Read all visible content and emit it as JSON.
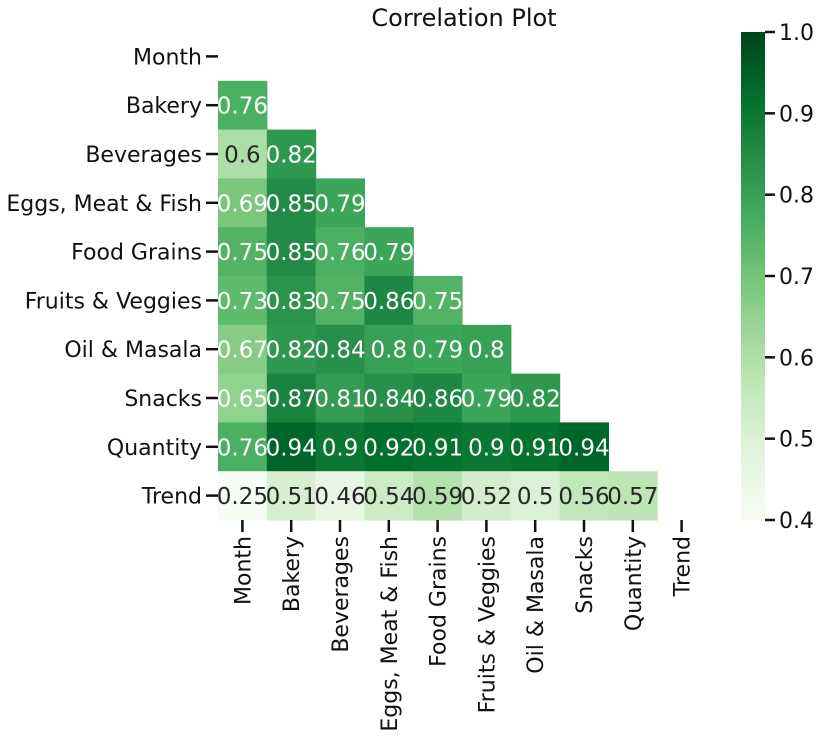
{
  "chart_data": {
    "type": "heatmap",
    "title": "Correlation Plot",
    "xlabel": "",
    "ylabel": "",
    "rows": [
      "Month",
      "Bakery",
      "Beverages",
      "Eggs, Meat & Fish",
      "Food Grains",
      "Fruits & Veggies",
      "Oil & Masala",
      "Snacks",
      "Quantity",
      "Trend"
    ],
    "columns": [
      "Month",
      "Bakery",
      "Beverages",
      "Eggs, Meat & Fish",
      "Food Grains",
      "Fruits & Veggies",
      "Oil & Masala",
      "Snacks",
      "Quantity",
      "Trend"
    ],
    "mask": "upper-triangle-including-diagonal",
    "values": [
      [
        null,
        null,
        null,
        null,
        null,
        null,
        null,
        null,
        null,
        null
      ],
      [
        0.76,
        null,
        null,
        null,
        null,
        null,
        null,
        null,
        null,
        null
      ],
      [
        0.6,
        0.82,
        null,
        null,
        null,
        null,
        null,
        null,
        null,
        null
      ],
      [
        0.69,
        0.85,
        0.79,
        null,
        null,
        null,
        null,
        null,
        null,
        null
      ],
      [
        0.75,
        0.85,
        0.76,
        0.79,
        null,
        null,
        null,
        null,
        null,
        null
      ],
      [
        0.73,
        0.83,
        0.75,
        0.86,
        0.75,
        null,
        null,
        null,
        null,
        null
      ],
      [
        0.67,
        0.82,
        0.84,
        0.8,
        0.79,
        0.8,
        null,
        null,
        null,
        null
      ],
      [
        0.65,
        0.87,
        0.81,
        0.84,
        0.86,
        0.79,
        0.82,
        null,
        null,
        null
      ],
      [
        0.76,
        0.94,
        0.9,
        0.92,
        0.91,
        0.9,
        0.91,
        0.94,
        null,
        null
      ],
      [
        0.25,
        0.51,
        0.46,
        0.54,
        0.59,
        0.52,
        0.5,
        0.56,
        0.57,
        null
      ]
    ],
    "colorbar": {
      "min": 0.4,
      "max": 1.0,
      "ticks": [
        "0.4",
        "0.5",
        "0.6",
        "0.7",
        "0.8",
        "0.9",
        "1.0"
      ],
      "colormap": "Greens",
      "low_color": "#f7fcf5",
      "high_color": "#00441b"
    },
    "annotations": true,
    "grid": false
  }
}
